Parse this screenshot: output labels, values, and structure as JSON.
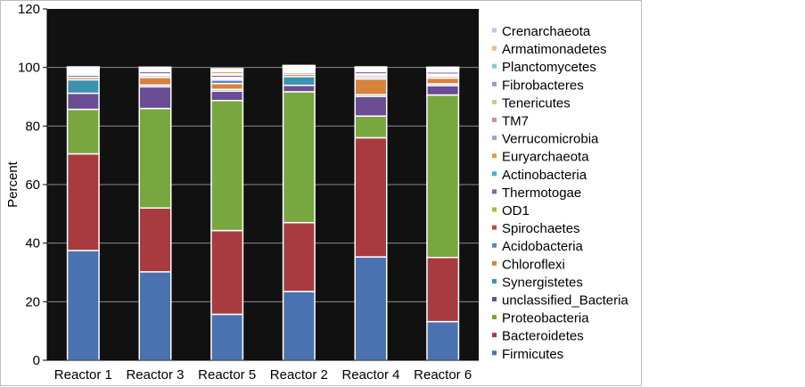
{
  "chart_data": {
    "type": "bar",
    "stacked": true,
    "xlabel": "",
    "ylabel": "Percent",
    "ylim": [
      0,
      120
    ],
    "yticks": [
      0,
      20,
      40,
      60,
      80,
      100,
      120
    ],
    "grid": true,
    "plot_background": "#111111",
    "legend_position": "right",
    "categories": [
      "Reactor 1",
      "Reactor 3",
      "Reactor 5",
      "Reactor 2",
      "Reactor 4",
      "Reactor 6"
    ],
    "series": [
      {
        "name": "Firmicutes",
        "color": "#4A72B0",
        "values": [
          37.5,
          30.2,
          15.7,
          23.5,
          35.3,
          13.2
        ]
      },
      {
        "name": "Bacteroidetes",
        "color": "#A83B3F",
        "values": [
          33.0,
          21.8,
          28.6,
          23.5,
          40.7,
          21.9
        ]
      },
      {
        "name": "Proteobacteria",
        "color": "#79A73F",
        "values": [
          15.2,
          34.0,
          44.4,
          44.7,
          7.4,
          55.5
        ]
      },
      {
        "name": "unclassified_Bacteria",
        "color": "#6A4D94",
        "values": [
          5.5,
          7.4,
          3.2,
          2.2,
          6.7,
          3.2
        ]
      },
      {
        "name": "Synergistetes",
        "color": "#3A92AE",
        "values": [
          4.6,
          0.6,
          0.6,
          3.0,
          0.6,
          0.6
        ]
      },
      {
        "name": "Chloroflexi",
        "color": "#D9823C",
        "values": [
          0.8,
          2.6,
          2.0,
          0.8,
          5.4,
          2.0
        ]
      },
      {
        "name": "Acidobacteria",
        "color": "#5B86C6",
        "values": [
          0.8,
          0.6,
          1.2,
          0.6,
          0.6,
          0.6
        ]
      },
      {
        "name": "Spirochaetes",
        "color": "#BC4E4E",
        "values": [
          0.5,
          0.3,
          0.5,
          0.4,
          0.6,
          0.4
        ]
      },
      {
        "name": "OD1",
        "color": "#9CC24C",
        "values": [
          0.4,
          0.3,
          0.4,
          0.3,
          0.5,
          0.3
        ]
      },
      {
        "name": "Thermotogae",
        "color": "#8064A6",
        "values": [
          0.4,
          0.8,
          0.8,
          0.3,
          0.8,
          0.8
        ]
      },
      {
        "name": "Actinobacteria",
        "color": "#4CADC6",
        "values": [
          0.3,
          0.3,
          0.4,
          0.3,
          0.4,
          0.3
        ]
      },
      {
        "name": "Euryarchaeota",
        "color": "#ED9C4E",
        "values": [
          0.3,
          0.3,
          0.8,
          0.2,
          0.3,
          0.4
        ]
      },
      {
        "name": "Verrucomicrobia",
        "color": "#91A9D5",
        "values": [
          0.2,
          0.2,
          0.3,
          0.2,
          0.2,
          0.2
        ]
      },
      {
        "name": "TM7",
        "color": "#D58E8E",
        "values": [
          0.2,
          0.2,
          0.2,
          0.2,
          0.2,
          0.2
        ]
      },
      {
        "name": "Tenericutes",
        "color": "#B7D48B",
        "values": [
          0.1,
          0.1,
          0.1,
          0.1,
          0.1,
          0.1
        ]
      },
      {
        "name": "Fibrobacteres",
        "color": "#A893C3",
        "values": [
          0.1,
          0.1,
          0.1,
          0.1,
          0.1,
          0.1
        ]
      },
      {
        "name": "Planctomycetes",
        "color": "#8AC7D8",
        "values": [
          0.1,
          0.1,
          0.1,
          0.1,
          0.1,
          0.1
        ]
      },
      {
        "name": "Armatimonadetes",
        "color": "#F3B886",
        "values": [
          0.1,
          0.1,
          0.1,
          0.1,
          0.1,
          0.1
        ]
      },
      {
        "name": "Crenarchaeota",
        "color": "#BDC9E4",
        "values": [
          0.1,
          0.1,
          0.1,
          0.1,
          0.1,
          0.1
        ]
      }
    ]
  }
}
